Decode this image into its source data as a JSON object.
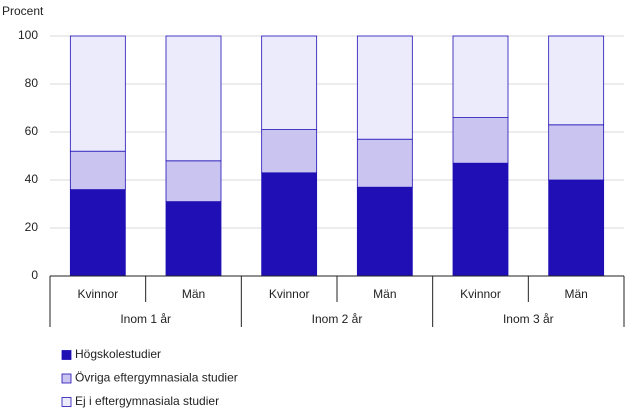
{
  "chart_data": {
    "type": "stacked-bar",
    "y_label": "Procent",
    "categories": [
      "Kvinnor",
      "Män",
      "Kvinnor",
      "Män",
      "Kvinnor",
      "Män"
    ],
    "groups": [
      "Inom 1 år",
      "Inom 2 år",
      "Inom 3 år"
    ],
    "series": [
      {
        "name": "Högskolestudier",
        "color": "#1f0fb5",
        "values": [
          36,
          31,
          43,
          37,
          47,
          40
        ]
      },
      {
        "name": "Övriga eftergymnasiala studier",
        "color": "#c9c5f0",
        "values": [
          16,
          17,
          18,
          20,
          19,
          23
        ]
      },
      {
        "name": "Ej i eftergymnasiala studier",
        "color": "#ecebfc",
        "values": [
          48,
          52,
          39,
          43,
          34,
          37
        ]
      }
    ],
    "ylim": [
      0,
      100
    ],
    "yticks": [
      0,
      20,
      40,
      60,
      80,
      100
    ],
    "grid": true
  }
}
